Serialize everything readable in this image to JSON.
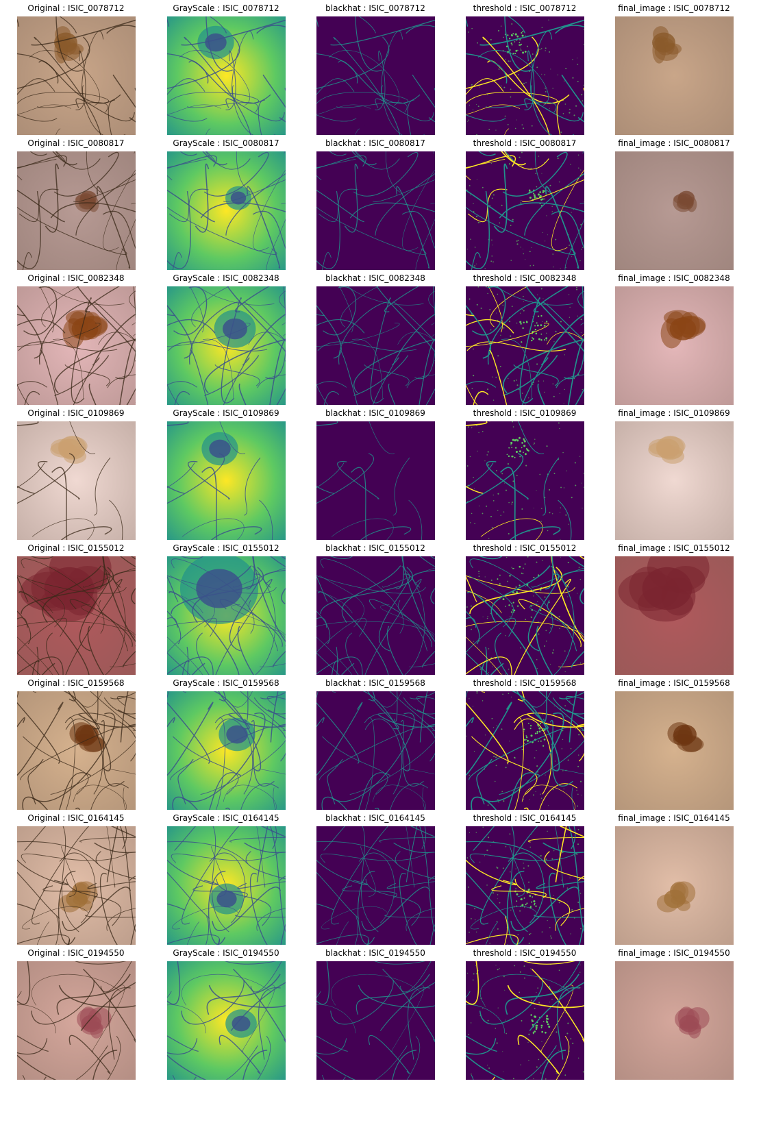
{
  "columns": [
    {
      "label": "Original",
      "kind": "original"
    },
    {
      "label": "GrayScale",
      "kind": "grayscale"
    },
    {
      "label": "blackhat",
      "kind": "blackhat"
    },
    {
      "label": "threshold",
      "kind": "threshold"
    },
    {
      "label": "final_image",
      "kind": "final"
    }
  ],
  "rows": [
    {
      "id": "ISIC_0078712",
      "skin": "#c9a689",
      "lesion": "#8a5a2a",
      "lesion_size": 0.14,
      "hair_density": "medium"
    },
    {
      "id": "ISIC_0080817",
      "skin": "#b79a94",
      "lesion": "#7a4a33",
      "lesion_size": 0.1,
      "hair_density": "medium"
    },
    {
      "id": "ISIC_0082348",
      "skin": "#e4b7b9",
      "lesion": "#8b4515",
      "lesion_size": 0.16,
      "hair_density": "high"
    },
    {
      "id": "ISIC_0109869",
      "skin": "#f0d9d2",
      "lesion": "#caa070",
      "lesion_size": 0.14,
      "hair_density": "low"
    },
    {
      "id": "ISIC_0155012",
      "skin": "#b0595c",
      "lesion": "#7a2430",
      "lesion_size": 0.3,
      "hair_density": "high"
    },
    {
      "id": "ISIC_0159568",
      "skin": "#d6b28e",
      "lesion": "#6e3612",
      "lesion_size": 0.14,
      "hair_density": "high"
    },
    {
      "id": "ISIC_0164145",
      "skin": "#e2bea8",
      "lesion": "#a07038",
      "lesion_size": 0.13,
      "hair_density": "high"
    },
    {
      "id": "ISIC_0194550",
      "skin": "#d5a79c",
      "lesion": "#9c4b55",
      "lesion_size": 0.12,
      "hair_density": "medium"
    }
  ],
  "colors": {
    "viridis_dark": "#440154",
    "viridis_blue": "#3b528b",
    "viridis_teal": "#21918c",
    "viridis_green": "#5ec962",
    "viridis_yellow": "#fde725",
    "hair_color": "#3b2a1a"
  }
}
